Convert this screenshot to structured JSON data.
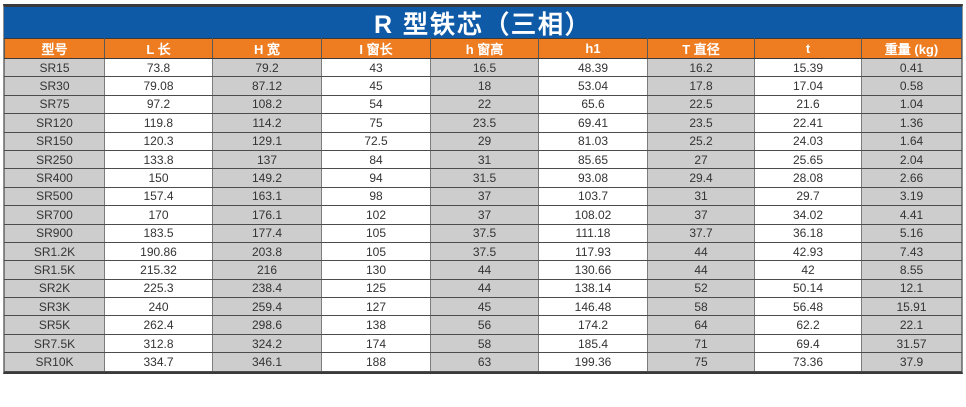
{
  "title": "R 型铁芯（三相）",
  "table": {
    "headers": [
      "型号",
      "L 长",
      "H 宽",
      "I 窗长",
      "h 窗高",
      "h1",
      "T 直径",
      "t",
      "重量 (kg)"
    ],
    "rows": [
      [
        "SR15",
        "73.8",
        "79.2",
        "43",
        "16.5",
        "48.39",
        "16.2",
        "15.39",
        "0.41"
      ],
      [
        "SR30",
        "79.08",
        "87.12",
        "45",
        "18",
        "53.04",
        "17.8",
        "17.04",
        "0.58"
      ],
      [
        "SR75",
        "97.2",
        "108.2",
        "54",
        "22",
        "65.6",
        "22.5",
        "21.6",
        "1.04"
      ],
      [
        "SR120",
        "119.8",
        "114.2",
        "75",
        "23.5",
        "69.41",
        "23.5",
        "22.41",
        "1.36"
      ],
      [
        "SR150",
        "120.3",
        "129.1",
        "72.5",
        "29",
        "81.03",
        "25.2",
        "24.03",
        "1.64"
      ],
      [
        "SR250",
        "133.8",
        "137",
        "84",
        "31",
        "85.65",
        "27",
        "25.65",
        "2.04"
      ],
      [
        "SR400",
        "150",
        "149.2",
        "94",
        "31.5",
        "93.08",
        "29.4",
        "28.08",
        "2.66"
      ],
      [
        "SR500",
        "157.4",
        "163.1",
        "98",
        "37",
        "103.7",
        "31",
        "29.7",
        "3.19"
      ],
      [
        "SR700",
        "170",
        "176.1",
        "102",
        "37",
        "108.02",
        "37",
        "34.02",
        "4.41"
      ],
      [
        "SR900",
        "183.5",
        "177.4",
        "105",
        "37.5",
        "111.18",
        "37.7",
        "36.18",
        "5.16"
      ],
      [
        "SR1.2K",
        "190.86",
        "203.8",
        "105",
        "37.5",
        "117.93",
        "44",
        "42.93",
        "7.43"
      ],
      [
        "SR1.5K",
        "215.32",
        "216",
        "130",
        "44",
        "130.66",
        "44",
        "42",
        "8.55"
      ],
      [
        "SR2K",
        "225.3",
        "238.4",
        "125",
        "44",
        "138.14",
        "52",
        "50.14",
        "12.1"
      ],
      [
        "SR3K",
        "240",
        "259.4",
        "127",
        "45",
        "146.48",
        "58",
        "56.48",
        "15.91"
      ],
      [
        "SR5K",
        "262.4",
        "298.6",
        "138",
        "56",
        "174.2",
        "64",
        "62.2",
        "22.1"
      ],
      [
        "SR7.5K",
        "312.8",
        "324.2",
        "174",
        "58",
        "185.4",
        "71",
        "69.4",
        "31.57"
      ],
      [
        "SR10K",
        "334.7",
        "346.1",
        "188",
        "63",
        "199.36",
        "75",
        "73.36",
        "37.9"
      ]
    ]
  },
  "colors": {
    "title_bg": "#0f5aa6",
    "header_bg": "#ee7c21",
    "header_text": "#ffffff",
    "cell_gray": "#cdcdcd",
    "cell_white": "#ffffff",
    "border_dark": "#3a3a3a",
    "body_text": "#333333"
  }
}
